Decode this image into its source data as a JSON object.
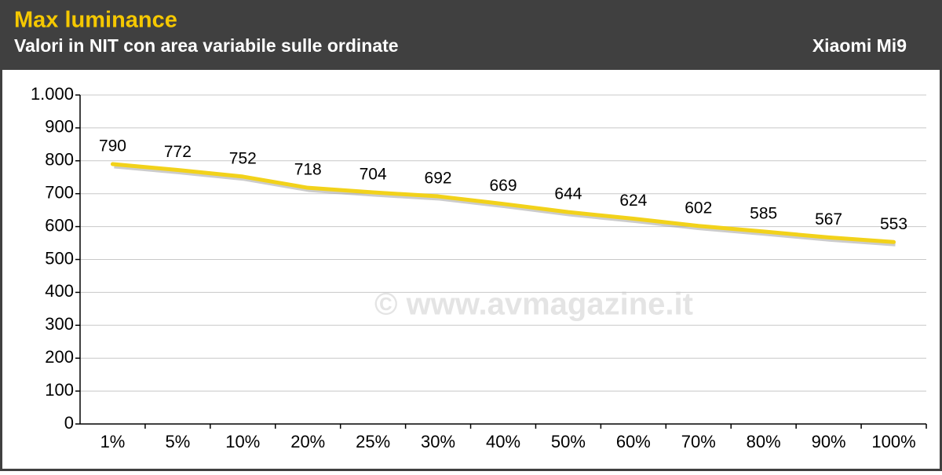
{
  "chart_data": {
    "type": "line",
    "title": "Max luminance",
    "subtitle": "Valori in NIT con area variabile sulle ordinate",
    "device": "Xiaomi Mi9",
    "watermark": "© www.avmagazine.it",
    "categories": [
      "1%",
      "5%",
      "10%",
      "20%",
      "25%",
      "30%",
      "40%",
      "50%",
      "60%",
      "70%",
      "80%",
      "90%",
      "100%"
    ],
    "series": [
      {
        "name": "Xiaomi Mi9",
        "color": "#f2d21a",
        "values": [
          790,
          772,
          752,
          718,
          704,
          692,
          669,
          644,
          624,
          602,
          585,
          567,
          553
        ]
      }
    ],
    "ylim": [
      0,
      1000
    ],
    "yticks": [
      0,
      100,
      200,
      300,
      400,
      500,
      600,
      700,
      800,
      900,
      {
        "value": 1000,
        "label": "1.000"
      }
    ],
    "grid": true
  }
}
